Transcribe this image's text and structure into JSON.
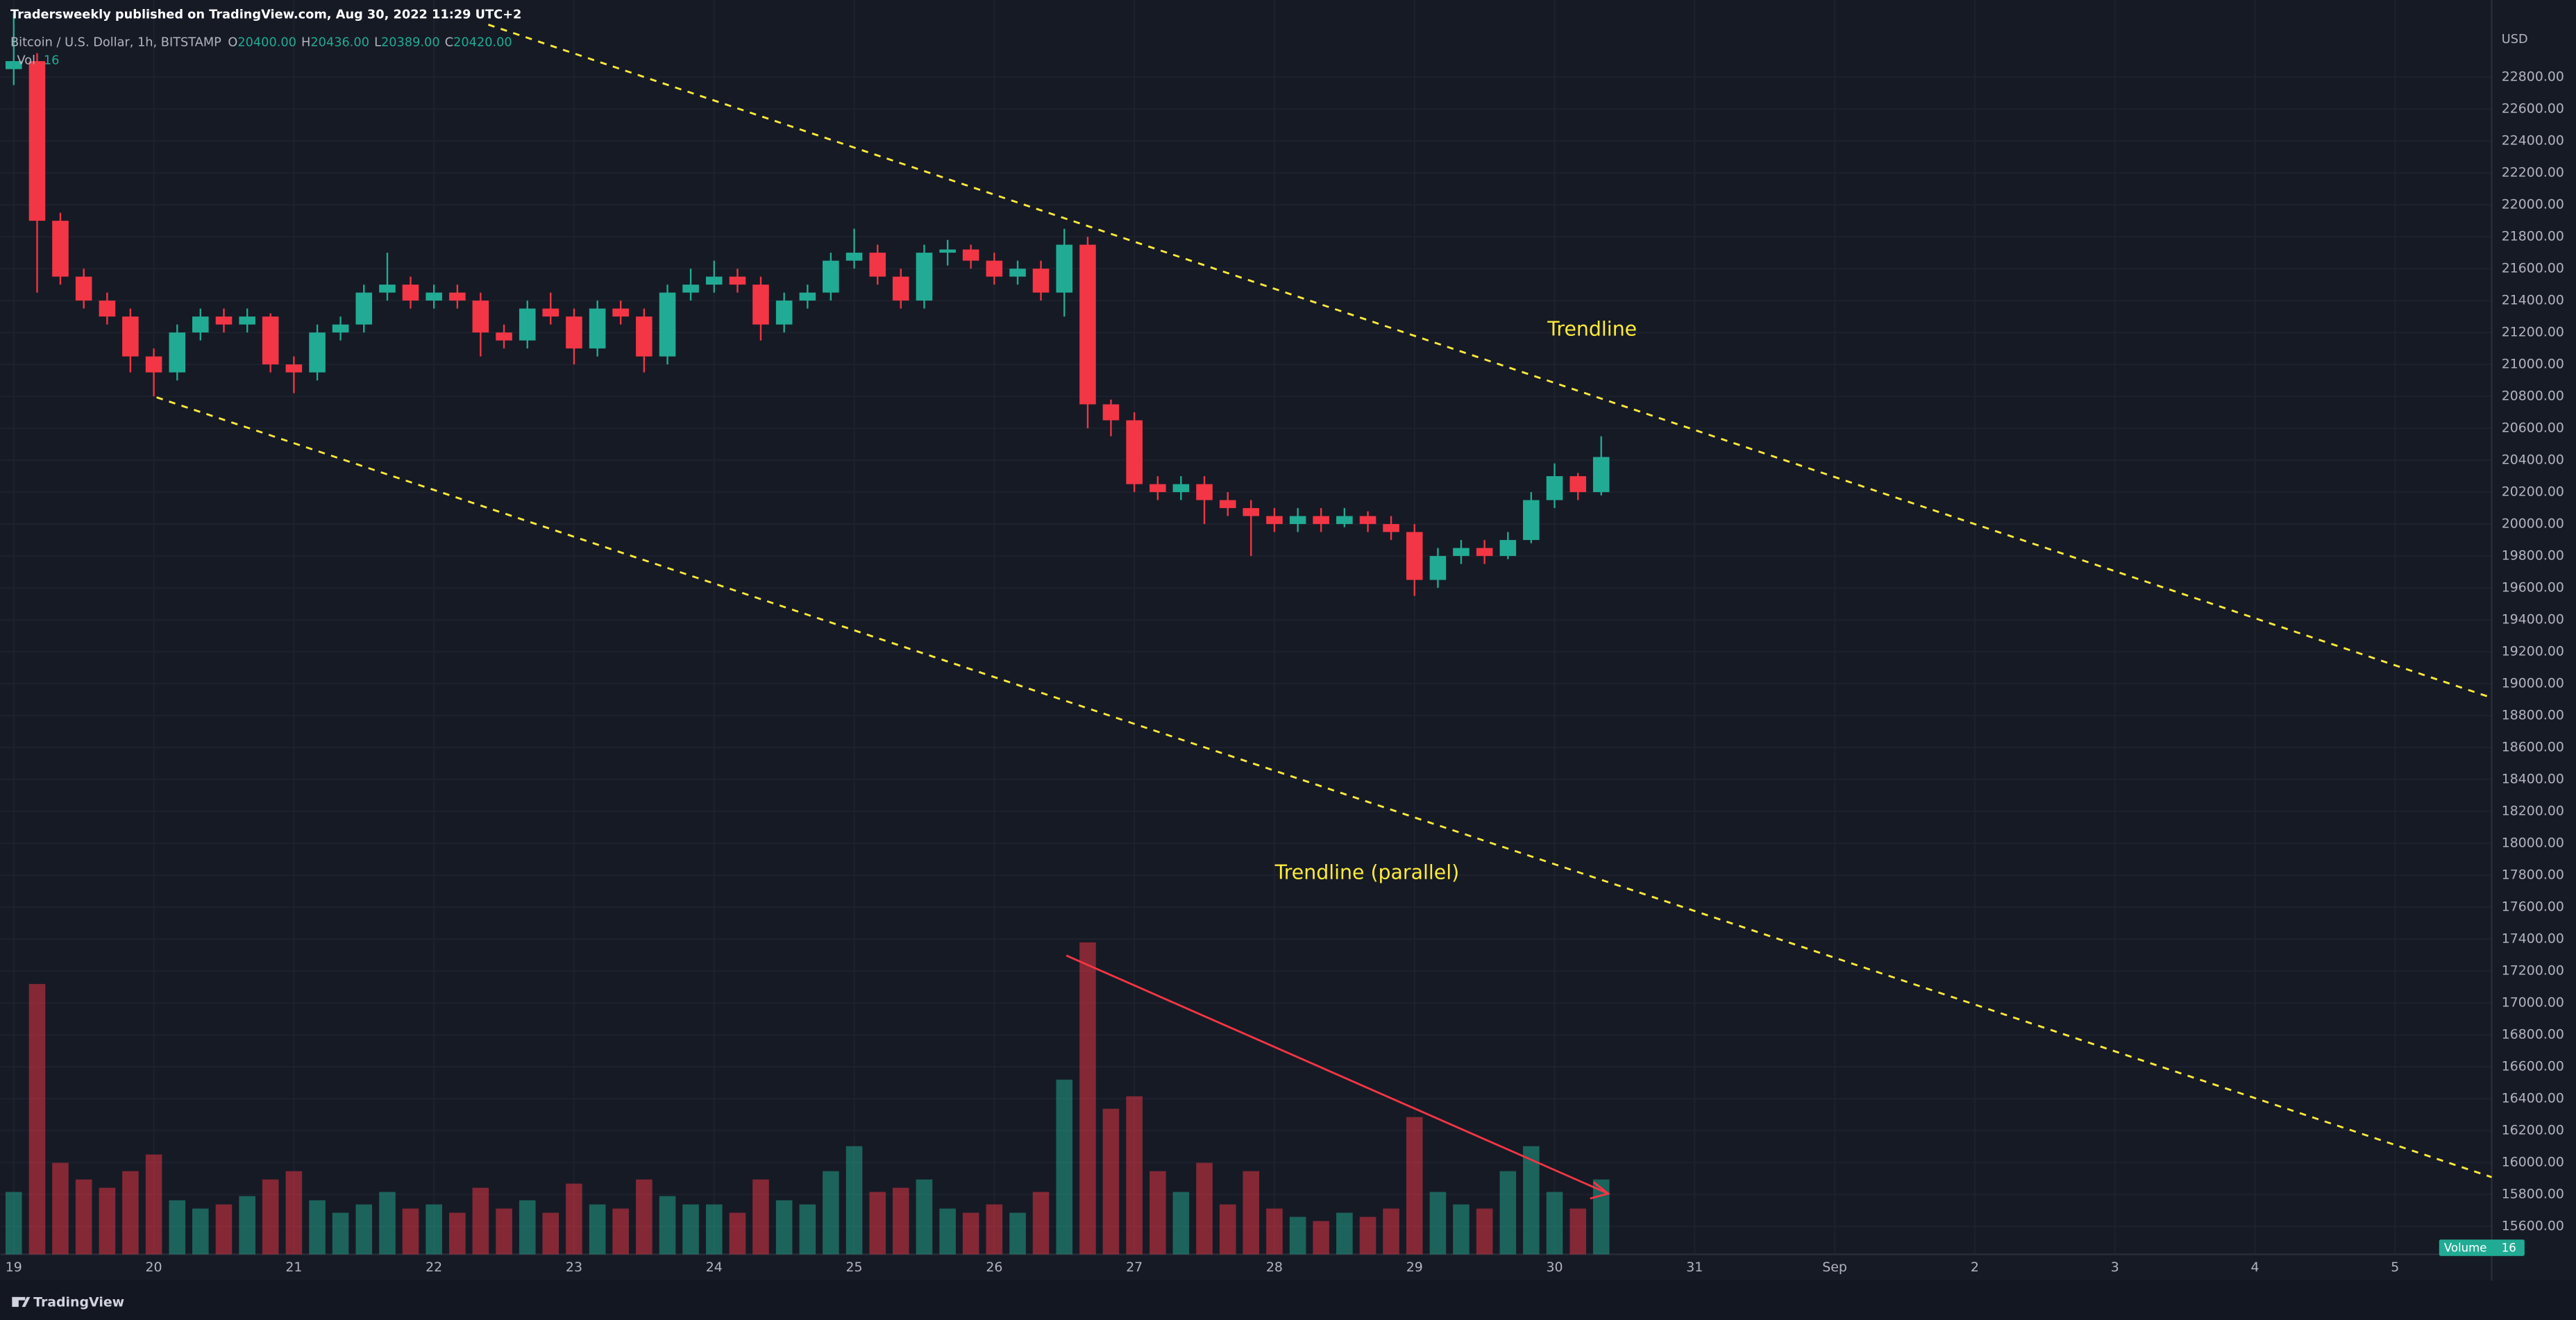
{
  "chart_data": {
    "type": "candlestick",
    "publisher_line": "Tradersweekly published on TradingView.com, Aug 30, 2022 11:29 UTC+2",
    "title": "Bitcoin / U.S. Dollar, 1h, BITSTAMP",
    "ohlc_legend": [
      {
        "key": "O",
        "value": "20400.00"
      },
      {
        "key": "H",
        "value": "20436.00"
      },
      {
        "key": "L",
        "value": "20389.00"
      },
      {
        "key": "C",
        "value": "20420.00"
      }
    ],
    "volume_name": "Vol",
    "volume_value": 16,
    "volume_badge": "Volume",
    "currency": "USD",
    "annotations": [
      "Trendline",
      "Trendline (parallel)"
    ],
    "brand": "TradingView",
    "up_color": "#22ab94",
    "down_color": "#f23645",
    "xlim": [
      18.906,
      36.69
    ],
    "xticks": [
      19,
      20,
      21,
      22,
      23,
      24,
      25,
      26,
      27,
      28,
      29,
      30,
      31,
      {
        "value": 32,
        "label": "Sep"
      },
      {
        "value": 33,
        "label": "2"
      },
      {
        "value": 34,
        "label": "3"
      },
      {
        "value": 35,
        "label": "4"
      },
      {
        "value": 36,
        "label": "5"
      }
    ],
    "ylim": [
      15425,
      23283
    ],
    "yticks": [
      {
        "value": 15600,
        "label": "15600.00"
      },
      {
        "value": 15800,
        "label": "15800.00"
      },
      {
        "value": 16000,
        "label": "16000.00"
      },
      {
        "value": 16200,
        "label": "16200.00"
      },
      {
        "value": 16400,
        "label": "16400.00"
      },
      {
        "value": 16600,
        "label": "16600.00"
      },
      {
        "value": 16800,
        "label": "16800.00"
      },
      {
        "value": 17000,
        "label": "17000.00"
      },
      {
        "value": 17200,
        "label": "17200.00"
      },
      {
        "value": 17400,
        "label": "17400.00"
      },
      {
        "value": 17600,
        "label": "17600.00"
      },
      {
        "value": 17800,
        "label": "17800.00"
      },
      {
        "value": 18000,
        "label": "18000.00"
      },
      {
        "value": 18200,
        "label": "18200.00"
      },
      {
        "value": 18400,
        "label": "18400.00"
      },
      {
        "value": 18600,
        "label": "18600.00"
      },
      {
        "value": 18800,
        "label": "18800.00"
      },
      {
        "value": 19000,
        "label": "19000.00"
      },
      {
        "value": 19200,
        "label": "19200.00"
      },
      {
        "value": 19400,
        "label": "19400.00"
      },
      {
        "value": 19600,
        "label": "19600.00"
      },
      {
        "value": 19800,
        "label": "19800.00"
      },
      {
        "value": 20000,
        "label": "20000.00"
      },
      {
        "value": 20200,
        "label": "20200.00"
      },
      {
        "value": 20400,
        "label": "20400.00"
      },
      {
        "value": 20600,
        "label": "20600.00"
      },
      {
        "value": 20800,
        "label": "20800.00"
      },
      {
        "value": 21000,
        "label": "21000.00"
      },
      {
        "value": 21200,
        "label": "21200.00"
      },
      {
        "value": 21400,
        "label": "21400.00"
      },
      {
        "value": 21600,
        "label": "21600.00"
      },
      {
        "value": 21800,
        "label": "21800.00"
      },
      {
        "value": 22000,
        "label": "22000.00"
      },
      {
        "value": 22200,
        "label": "22200.00"
      },
      {
        "value": 22400,
        "label": "22400.00"
      },
      {
        "value": 22600,
        "label": "22600.00"
      },
      {
        "value": 22800,
        "label": "22800.00"
      }
    ],
    "grid": true,
    "x": [
      19,
      19.167,
      19.333,
      19.5,
      19.667,
      19.833,
      20,
      20.167,
      20.333,
      20.5,
      20.667,
      20.833,
      21,
      21.167,
      21.333,
      21.5,
      21.667,
      21.833,
      22,
      22.167,
      22.333,
      22.5,
      22.667,
      22.833,
      23,
      23.167,
      23.333,
      23.5,
      23.667,
      23.833,
      24,
      24.167,
      24.333,
      24.5,
      24.667,
      24.833,
      25,
      25.167,
      25.333,
      25.5,
      25.667,
      25.833,
      26,
      26.167,
      26.333,
      26.5,
      26.667,
      26.833,
      27,
      27.167,
      27.333,
      27.5,
      27.667,
      27.833,
      28,
      28.167,
      28.333,
      28.5,
      28.667,
      28.833,
      29,
      29.167,
      29.333,
      29.5,
      29.667,
      29.833,
      30,
      30.167,
      30.333
    ],
    "open": [
      22850,
      22900,
      21900,
      21550,
      21400,
      21300,
      21050,
      20950,
      21200,
      21300,
      21250,
      21300,
      21000,
      20950,
      21200,
      21250,
      21450,
      21500,
      21400,
      21450,
      21400,
      21200,
      21150,
      21350,
      21300,
      21100,
      21350,
      21300,
      21050,
      21450,
      21500,
      21550,
      21500,
      21250,
      21400,
      21450,
      21650,
      21700,
      21550,
      21400,
      21700,
      21720,
      21650,
      21550,
      21600,
      21450,
      21750,
      20750,
      20650,
      20250,
      20200,
      20250,
      20150,
      20100,
      20050,
      20000,
      20050,
      20000,
      20050,
      20000,
      19950,
      19650,
      19800,
      19850,
      19800,
      19900,
      20150,
      20300,
      20200
    ],
    "high": [
      23200,
      22950,
      21950,
      21600,
      21450,
      21350,
      21100,
      21250,
      21350,
      21350,
      21350,
      21320,
      21050,
      21250,
      21300,
      21500,
      21700,
      21550,
      21500,
      21500,
      21450,
      21250,
      21400,
      21450,
      21350,
      21400,
      21400,
      21350,
      21500,
      21600,
      21650,
      21600,
      21550,
      21450,
      21500,
      21700,
      21850,
      21750,
      21600,
      21750,
      21780,
      21750,
      21700,
      21650,
      21650,
      21850,
      21800,
      20780,
      20700,
      20300,
      20300,
      20300,
      20200,
      20150,
      20100,
      20100,
      20100,
      20100,
      20080,
      20050,
      20000,
      19850,
      19900,
      19900,
      19950,
      20200,
      20380,
      20320,
      20550
    ],
    "low": [
      22750,
      21450,
      21500,
      21350,
      21250,
      20950,
      20800,
      20900,
      21150,
      21200,
      21200,
      20950,
      20820,
      20900,
      21150,
      21200,
      21400,
      21350,
      21350,
      21350,
      21050,
      21100,
      21100,
      21250,
      21000,
      21050,
      21250,
      20950,
      21000,
      21400,
      21450,
      21450,
      21150,
      21200,
      21350,
      21400,
      21600,
      21500,
      21350,
      21350,
      21620,
      21600,
      21500,
      21500,
      21400,
      21300,
      20600,
      20550,
      20200,
      20150,
      20150,
      20000,
      20050,
      19800,
      19950,
      19950,
      19950,
      19980,
      19950,
      19900,
      19550,
      19600,
      19750,
      19750,
      19780,
      19880,
      20100,
      20150,
      20180
    ],
    "close": [
      22900,
      21900,
      21550,
      21400,
      21300,
      21050,
      20950,
      21200,
      21300,
      21250,
      21300,
      21000,
      20950,
      21200,
      21250,
      21450,
      21500,
      21400,
      21450,
      21400,
      21200,
      21150,
      21350,
      21300,
      21100,
      21350,
      21300,
      21050,
      21450,
      21500,
      21550,
      21500,
      21250,
      21400,
      21450,
      21650,
      21700,
      21550,
      21400,
      21700,
      21720,
      21650,
      21550,
      21600,
      21450,
      21750,
      20750,
      20650,
      20250,
      20200,
      20250,
      20150,
      20100,
      20050,
      20000,
      20050,
      20000,
      20050,
      20000,
      19950,
      19650,
      19800,
      19850,
      19800,
      19900,
      20150,
      20300,
      20200,
      20420
    ],
    "volume": [
      150,
      650,
      220,
      180,
      160,
      200,
      240,
      130,
      110,
      120,
      140,
      180,
      200,
      130,
      100,
      120,
      150,
      110,
      120,
      100,
      160,
      110,
      130,
      100,
      170,
      120,
      110,
      180,
      140,
      120,
      120,
      100,
      180,
      130,
      120,
      200,
      260,
      150,
      160,
      180,
      110,
      100,
      120,
      100,
      150,
      420,
      750,
      350,
      380,
      200,
      150,
      220,
      120,
      200,
      110,
      90,
      80,
      100,
      90,
      110,
      330,
      150,
      120,
      110,
      200,
      260,
      150,
      110,
      180
    ]
  }
}
